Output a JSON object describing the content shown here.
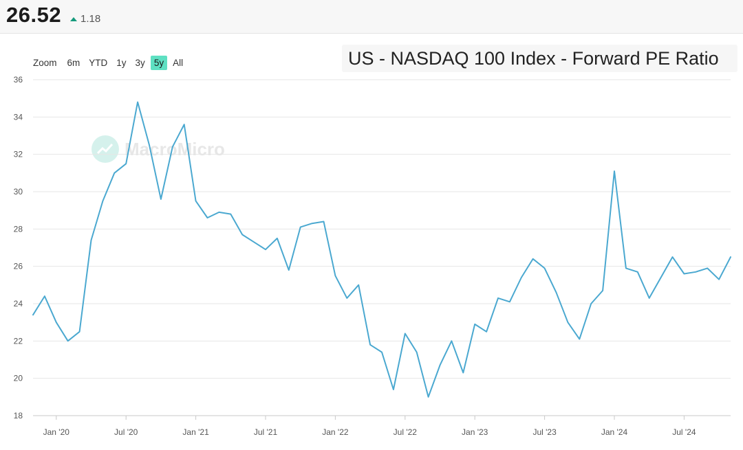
{
  "header": {
    "value": "26.52",
    "change": "1.18",
    "change_direction": "up",
    "up_color": "#159a7c"
  },
  "zoom": {
    "label": "Zoom",
    "buttons": [
      "6m",
      "YTD",
      "1y",
      "3y",
      "5y",
      "All"
    ],
    "active": "5y",
    "active_color": "#5ee0c2"
  },
  "watermark": {
    "text": "MacroMicro"
  },
  "chart_data": {
    "type": "line",
    "title": "US - NASDAQ 100 Index - Forward PE Ratio",
    "xlabel": "",
    "ylabel": "",
    "ylim": [
      18,
      36
    ],
    "yticks": [
      18,
      20,
      22,
      24,
      26,
      28,
      30,
      32,
      34,
      36
    ],
    "x_range": [
      "2019-11",
      "2024-11"
    ],
    "xticks": [
      {
        "date": "2020-01",
        "label": "Jan '20"
      },
      {
        "date": "2020-07",
        "label": "Jul '20"
      },
      {
        "date": "2021-01",
        "label": "Jan '21"
      },
      {
        "date": "2021-07",
        "label": "Jul '21"
      },
      {
        "date": "2022-01",
        "label": "Jan '22"
      },
      {
        "date": "2022-07",
        "label": "Jul '22"
      },
      {
        "date": "2023-01",
        "label": "Jan '23"
      },
      {
        "date": "2023-07",
        "label": "Jul '23"
      },
      {
        "date": "2024-01",
        "label": "Jan '24"
      },
      {
        "date": "2024-07",
        "label": "Jul '24"
      }
    ],
    "grid": true,
    "line_color": "#4aa8d0",
    "series": [
      {
        "points": [
          [
            "2019-11",
            23.4
          ],
          [
            "2019-12",
            24.4
          ],
          [
            "2020-01",
            23.0
          ],
          [
            "2020-02",
            22.0
          ],
          [
            "2020-03",
            22.5
          ],
          [
            "2020-04",
            27.4
          ],
          [
            "2020-05",
            29.5
          ],
          [
            "2020-06",
            31.0
          ],
          [
            "2020-07",
            31.5
          ],
          [
            "2020-08",
            34.8
          ],
          [
            "2020-09",
            32.5
          ],
          [
            "2020-10",
            29.6
          ],
          [
            "2020-11",
            32.4
          ],
          [
            "2020-12",
            33.6
          ],
          [
            "2021-01",
            29.5
          ],
          [
            "2021-02",
            28.6
          ],
          [
            "2021-03",
            28.9
          ],
          [
            "2021-04",
            28.8
          ],
          [
            "2021-05",
            27.7
          ],
          [
            "2021-06",
            27.3
          ],
          [
            "2021-07",
            26.9
          ],
          [
            "2021-08",
            27.5
          ],
          [
            "2021-09",
            25.8
          ],
          [
            "2021-10",
            28.1
          ],
          [
            "2021-11",
            28.3
          ],
          [
            "2021-12",
            28.4
          ],
          [
            "2022-01",
            25.5
          ],
          [
            "2022-02",
            24.3
          ],
          [
            "2022-03",
            25.0
          ],
          [
            "2022-04",
            21.8
          ],
          [
            "2022-05",
            21.4
          ],
          [
            "2022-06",
            19.4
          ],
          [
            "2022-07",
            22.4
          ],
          [
            "2022-08",
            21.4
          ],
          [
            "2022-09",
            19.0
          ],
          [
            "2022-10",
            20.7
          ],
          [
            "2022-11",
            22.0
          ],
          [
            "2022-12",
            20.3
          ],
          [
            "2023-01",
            22.9
          ],
          [
            "2023-02",
            22.5
          ],
          [
            "2023-03",
            24.3
          ],
          [
            "2023-04",
            24.1
          ],
          [
            "2023-05",
            25.4
          ],
          [
            "2023-06",
            26.4
          ],
          [
            "2023-07",
            25.9
          ],
          [
            "2023-08",
            24.6
          ],
          [
            "2023-09",
            23.0
          ],
          [
            "2023-10",
            22.1
          ],
          [
            "2023-11",
            24.0
          ],
          [
            "2023-12",
            24.7
          ],
          [
            "2024-01",
            31.1
          ],
          [
            "2024-02",
            25.9
          ],
          [
            "2024-03",
            25.7
          ],
          [
            "2024-04",
            24.3
          ],
          [
            "2024-05",
            25.4
          ],
          [
            "2024-06",
            26.5
          ],
          [
            "2024-07",
            25.6
          ],
          [
            "2024-08",
            25.7
          ],
          [
            "2024-09",
            25.9
          ],
          [
            "2024-10",
            25.3
          ],
          [
            "2024-11",
            26.5
          ]
        ]
      }
    ]
  }
}
